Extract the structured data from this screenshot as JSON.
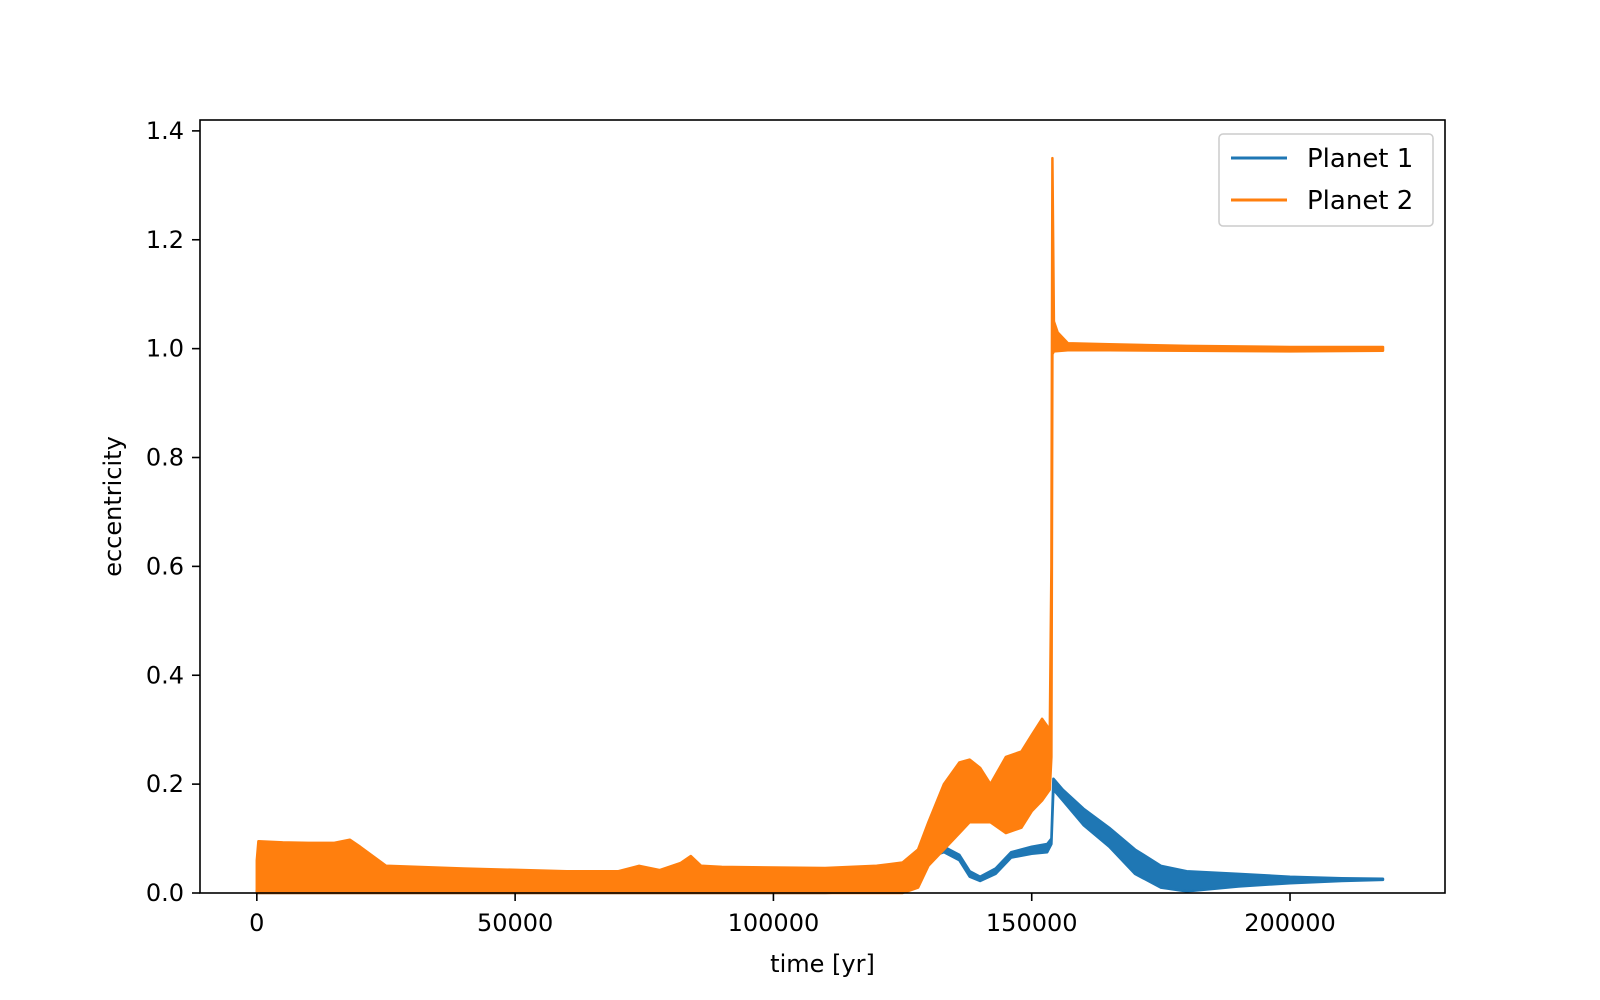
{
  "chart_data": {
    "type": "line",
    "title": "",
    "xlabel": "time [yr]",
    "ylabel": "eccentricity",
    "xlim": [
      -11000,
      230000
    ],
    "ylim": [
      0,
      1.42
    ],
    "xticks": [
      0,
      50000,
      100000,
      150000,
      200000
    ],
    "yticks": [
      0.0,
      0.2,
      0.4,
      0.6,
      0.8,
      1.0,
      1.2,
      1.4
    ],
    "xtick_labels": [
      "0",
      "50000",
      "100000",
      "150000",
      "200000"
    ],
    "ytick_labels": [
      "0.0",
      "0.2",
      "0.4",
      "0.6",
      "0.8",
      "1.0",
      "1.2",
      "1.4"
    ],
    "grid": false,
    "legend_position": "top-right",
    "series": [
      {
        "name": "Planet 1",
        "color": "#1f77b4",
        "upper": [
          [
            0,
            0.005
          ],
          [
            1000,
            0.012
          ],
          [
            20000,
            0.02
          ],
          [
            25000,
            0.01
          ],
          [
            60000,
            0.004
          ],
          [
            84000,
            0.01
          ],
          [
            86000,
            0.004
          ],
          [
            110000,
            0.006
          ],
          [
            125000,
            0.015
          ],
          [
            128000,
            0.04
          ],
          [
            130000,
            0.075
          ],
          [
            133000,
            0.085
          ],
          [
            136000,
            0.07
          ],
          [
            138000,
            0.04
          ],
          [
            140000,
            0.03
          ],
          [
            143000,
            0.045
          ],
          [
            146000,
            0.075
          ],
          [
            150000,
            0.085
          ],
          [
            153000,
            0.09
          ],
          [
            153800,
            0.1
          ],
          [
            154200,
            0.21
          ],
          [
            156000,
            0.19
          ],
          [
            160000,
            0.155
          ],
          [
            165000,
            0.12
          ],
          [
            170000,
            0.08
          ],
          [
            175000,
            0.05
          ],
          [
            180000,
            0.04
          ],
          [
            190000,
            0.035
          ],
          [
            200000,
            0.03
          ],
          [
            210000,
            0.027
          ],
          [
            218000,
            0.026
          ]
        ],
        "lower": [
          [
            0,
            0.0
          ],
          [
            20000,
            0.0
          ],
          [
            25000,
            0.0
          ],
          [
            110000,
            0.0
          ],
          [
            125000,
            0.005
          ],
          [
            128000,
            0.03
          ],
          [
            130000,
            0.065
          ],
          [
            133000,
            0.075
          ],
          [
            136000,
            0.06
          ],
          [
            138000,
            0.03
          ],
          [
            140000,
            0.022
          ],
          [
            143000,
            0.035
          ],
          [
            146000,
            0.065
          ],
          [
            150000,
            0.072
          ],
          [
            153000,
            0.075
          ],
          [
            153800,
            0.09
          ],
          [
            154200,
            0.19
          ],
          [
            156000,
            0.17
          ],
          [
            160000,
            0.125
          ],
          [
            165000,
            0.085
          ],
          [
            170000,
            0.035
          ],
          [
            175000,
            0.01
          ],
          [
            180000,
            0.003
          ],
          [
            190000,
            0.012
          ],
          [
            200000,
            0.018
          ],
          [
            210000,
            0.022
          ],
          [
            218000,
            0.024
          ]
        ]
      },
      {
        "name": "Planet 2",
        "color": "#ff7f0e",
        "upper": [
          [
            0,
            0.06
          ],
          [
            300,
            0.095
          ],
          [
            5000,
            0.093
          ],
          [
            10000,
            0.092
          ],
          [
            15000,
            0.092
          ],
          [
            18000,
            0.098
          ],
          [
            20000,
            0.085
          ],
          [
            25000,
            0.05
          ],
          [
            40000,
            0.045
          ],
          [
            60000,
            0.04
          ],
          [
            70000,
            0.04
          ],
          [
            74000,
            0.05
          ],
          [
            78000,
            0.042
          ],
          [
            82000,
            0.055
          ],
          [
            84000,
            0.068
          ],
          [
            86000,
            0.05
          ],
          [
            90000,
            0.048
          ],
          [
            110000,
            0.046
          ],
          [
            120000,
            0.05
          ],
          [
            125000,
            0.056
          ],
          [
            128000,
            0.08
          ],
          [
            130000,
            0.13
          ],
          [
            133000,
            0.2
          ],
          [
            136000,
            0.24
          ],
          [
            138000,
            0.245
          ],
          [
            140000,
            0.23
          ],
          [
            142000,
            0.2
          ],
          [
            145000,
            0.25
          ],
          [
            148000,
            0.26
          ],
          [
            150000,
            0.29
          ],
          [
            152000,
            0.32
          ],
          [
            153500,
            0.3
          ],
          [
            153800,
            0.6
          ],
          [
            154000,
            1.35
          ],
          [
            154300,
            1.05
          ],
          [
            155000,
            1.03
          ],
          [
            157000,
            1.01
          ],
          [
            165000,
            1.008
          ],
          [
            180000,
            1.005
          ],
          [
            200000,
            1.003
          ],
          [
            218000,
            1.003
          ]
        ],
        "lower": [
          [
            0,
            0.0
          ],
          [
            300,
            0.0
          ],
          [
            20000,
            0.0
          ],
          [
            25000,
            0.0
          ],
          [
            60000,
            0.0
          ],
          [
            110000,
            0.0
          ],
          [
            120000,
            0.0
          ],
          [
            125000,
            0.0
          ],
          [
            128000,
            0.01
          ],
          [
            130000,
            0.05
          ],
          [
            133000,
            0.08
          ],
          [
            136000,
            0.11
          ],
          [
            138000,
            0.13
          ],
          [
            140000,
            0.13
          ],
          [
            142000,
            0.13
          ],
          [
            145000,
            0.11
          ],
          [
            148000,
            0.12
          ],
          [
            150000,
            0.15
          ],
          [
            152000,
            0.17
          ],
          [
            153500,
            0.19
          ],
          [
            153800,
            0.25
          ],
          [
            154000,
            0.99
          ],
          [
            154300,
            0.995
          ],
          [
            157000,
            0.997
          ],
          [
            165000,
            0.997
          ],
          [
            180000,
            0.996
          ],
          [
            200000,
            0.995
          ],
          [
            218000,
            0.996
          ]
        ]
      }
    ]
  }
}
